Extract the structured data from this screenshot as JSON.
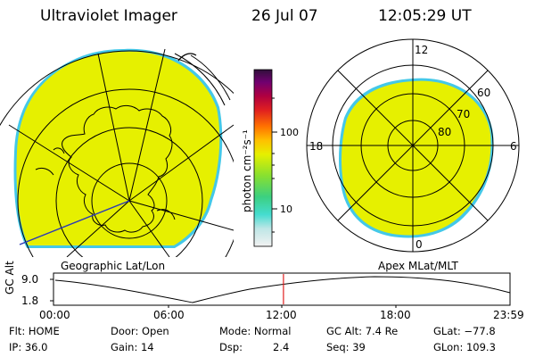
{
  "header": {
    "title": "Ultraviolet Imager",
    "date": "26 Jul 07",
    "time": "12:05:29 UT"
  },
  "colors": {
    "fill": "#e6f000",
    "rim": "#44c8e8",
    "marker": "#e02020"
  },
  "colorbar": {
    "label": "photon cm⁻²s⁻¹",
    "ticks": [
      "100",
      "10"
    ],
    "stops": [
      "#f2f2f2",
      "#bfe6e6",
      "#44dcd0",
      "#3cd080",
      "#88e030",
      "#e6f000",
      "#ffc000",
      "#ff7000",
      "#e02020",
      "#b00040",
      "#700070",
      "#30103a"
    ]
  },
  "geo_panel": {
    "label": "Geographic Lat/Lon"
  },
  "polar_panel": {
    "label": "Apex MLat/MLT",
    "mlt": {
      "top": "12",
      "left": "18",
      "right": "6",
      "bottom": "0"
    },
    "lat_labels": [
      "60",
      "70",
      "80"
    ]
  },
  "altitude": {
    "axis_title": "GC Alt",
    "y_ticks": [
      "9.0",
      "1.8"
    ],
    "x_ticks": [
      "00:00",
      "06:00",
      "12:00",
      "18:00",
      "23:59"
    ],
    "current_time_hours": 12.09
  },
  "footer": {
    "filter": "Flt: HOME",
    "door": "Door: Open",
    "mode": "Mode: Normal",
    "gc_alt": "GC Alt: 7.4 Re",
    "glat": "GLat: −77.8",
    "ip": "IP: 36.0",
    "gain": "Gain: 14",
    "dsp_label": "Dsp:",
    "dsp_value": "2.4",
    "seq": "Seq: 39",
    "glon": "GLon: 109.3"
  }
}
